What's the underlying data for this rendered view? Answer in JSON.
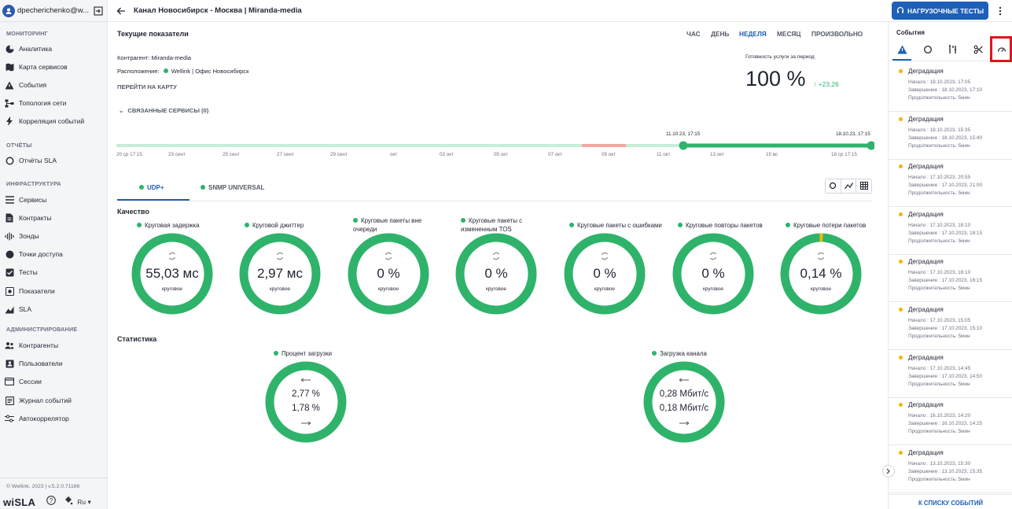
{
  "sidebar": {
    "username": "dpecherichenko@w...",
    "sections": {
      "monitoring": "МОНИТОРИНГ",
      "reports": "ОТЧЁТЫ",
      "infrastructure": "ИНФРАСТРУКТУРА",
      "administration": "АДМИНИСТРИРОВАНИЕ"
    },
    "items": {
      "analytics": "Аналитика",
      "service_map": "Карта сервисов",
      "events": "События",
      "topology": "Топология сети",
      "correlation": "Корреляция событий",
      "sla_reports": "Отчёты SLA",
      "services": "Сервисы",
      "contracts": "Контракты",
      "probes": "Зонды",
      "access_points": "Точки доступа",
      "tests": "Тесты",
      "indicators": "Показатели",
      "sla": "SLA",
      "counterparties": "Контрагенты",
      "users": "Пользователи",
      "sessions": "Сессии",
      "event_log": "Журнал событий",
      "autocorrelator": "Автокоррелятор"
    },
    "copyright": "© Wellink, 2023 | v.5.2.0.71166",
    "logo": "wiSLA",
    "language": "Ru"
  },
  "header": {
    "title": "Канал Новосибирск - Москва | Miranda-media",
    "load_tests_button": "НАГРУЗОЧНЫЕ ТЕСТЫ"
  },
  "main": {
    "current_title": "Текущие показатели",
    "periods": [
      "ЧАС",
      "ДЕНЬ",
      "НЕДЕЛЯ",
      "МЕСЯЦ",
      "ПРОИЗВОЛЬНО"
    ],
    "active_period": "НЕДЕЛЯ",
    "counterparty": "Контрагент: Miranda-media",
    "location_label": "Расположение:",
    "location_value": "Wellink | Офис Новосибирск",
    "map_link": "ПЕРЕЙТИ НА КАРТУ",
    "readiness_label": "Готовность услуги за период",
    "readiness_value": "100 %",
    "readiness_delta": "↑ +23,26",
    "linked_services": "СВЯЗАННЫЕ СЕРВИСЫ (0)",
    "timeline": {
      "range_start_label": "11.10.23, 17:15",
      "range_end_label": "18.10.23, 17:15",
      "ticks": [
        "20 ср 17:15",
        "23 сент",
        "25 сент",
        "27 сент",
        "29 сент",
        "окт",
        "03 окт",
        "05 окт",
        "07 окт",
        "09 окт",
        "11 окт",
        "13 окт",
        "15 вс",
        "18 ср 17:15"
      ]
    },
    "tabs": [
      "UDP+",
      "SNMP UNIVERSAL"
    ],
    "quality_title": "Качество",
    "metrics": [
      {
        "label": "Круговая задержка",
        "value": "55,03 мс",
        "sub": "круговое"
      },
      {
        "label": "Круговой джиттер",
        "value": "2,97 мс",
        "sub": "круговое"
      },
      {
        "label": "Круговые пакеты вне очереди",
        "value": "0 %",
        "sub": "круговое"
      },
      {
        "label": "Круговые пакеты с измененным TOS",
        "value": "0 %",
        "sub": "круговое"
      },
      {
        "label": "Круговые пакеты с ошибками",
        "value": "0 %",
        "sub": "круговое"
      },
      {
        "label": "Круговые повторы пакетов",
        "value": "0 %",
        "sub": "круговое"
      },
      {
        "label": "Круговые потери пакетов",
        "value": "0,14 %",
        "sub": "круговое"
      }
    ],
    "stats_title": "Статистика",
    "stats": [
      {
        "label": "Процент загрузки",
        "in": "2,77 %",
        "out": "1,78 %"
      },
      {
        "label": "Загрузка канала",
        "in": "0,28 Мбит/с",
        "out": "0,18 Мбит/с"
      }
    ],
    "colors": {
      "ok": "#2fb36b",
      "warn": "#f2b705",
      "accent": "#1e5fb8",
      "bad": "#f4a6a0"
    }
  },
  "events_panel": {
    "title": "События",
    "link": "К СПИСКУ СОБЫТИЙ",
    "items": [
      {
        "title": "Деградация",
        "start": "Начало : 18.10.2023, 17:05",
        "end": "Завершение : 18.10.2023, 17:10",
        "duration": "Продолжительность: 5мин"
      },
      {
        "title": "Деградация",
        "start": "Начало : 18.10.2023, 15:35",
        "end": "Завершение : 18.10.2023, 15:40",
        "duration": "Продолжительность: 5мин"
      },
      {
        "title": "Деградация",
        "start": "Начало : 17.10.2023, 20:55",
        "end": "Завершение : 17.10.2023, 21:00",
        "duration": "Продолжительность: 5мин"
      },
      {
        "title": "Деградация",
        "start": "Начало : 17.10.2023, 18:10",
        "end": "Завершение : 17.10.2023, 18:15",
        "duration": "Продолжительность: 5мин"
      },
      {
        "title": "Деградация",
        "start": "Начало : 17.10.2023, 16:10",
        "end": "Завершение : 17.10.2023, 16:15",
        "duration": "Продолжительность: 5мин"
      },
      {
        "title": "Деградация",
        "start": "Начало : 17.10.2023, 15:05",
        "end": "Завершение : 17.10.2023, 15:10",
        "duration": "Продолжительность: 5мин"
      },
      {
        "title": "Деградация",
        "start": "Начало : 17.10.2023, 14:45",
        "end": "Завершение : 17.10.2023, 14:50",
        "duration": "Продолжительность: 5мин"
      },
      {
        "title": "Деградация",
        "start": "Начало : 16.10.2023, 14:20",
        "end": "Завершение : 16.10.2023, 14:25",
        "duration": "Продолжительность: 5мин"
      },
      {
        "title": "Деградация",
        "start": "Начало : 13.10.2023, 15:30",
        "end": "Завершение : 13.10.2023, 15:35",
        "duration": "Продолжительность: 5мин"
      }
    ]
  }
}
